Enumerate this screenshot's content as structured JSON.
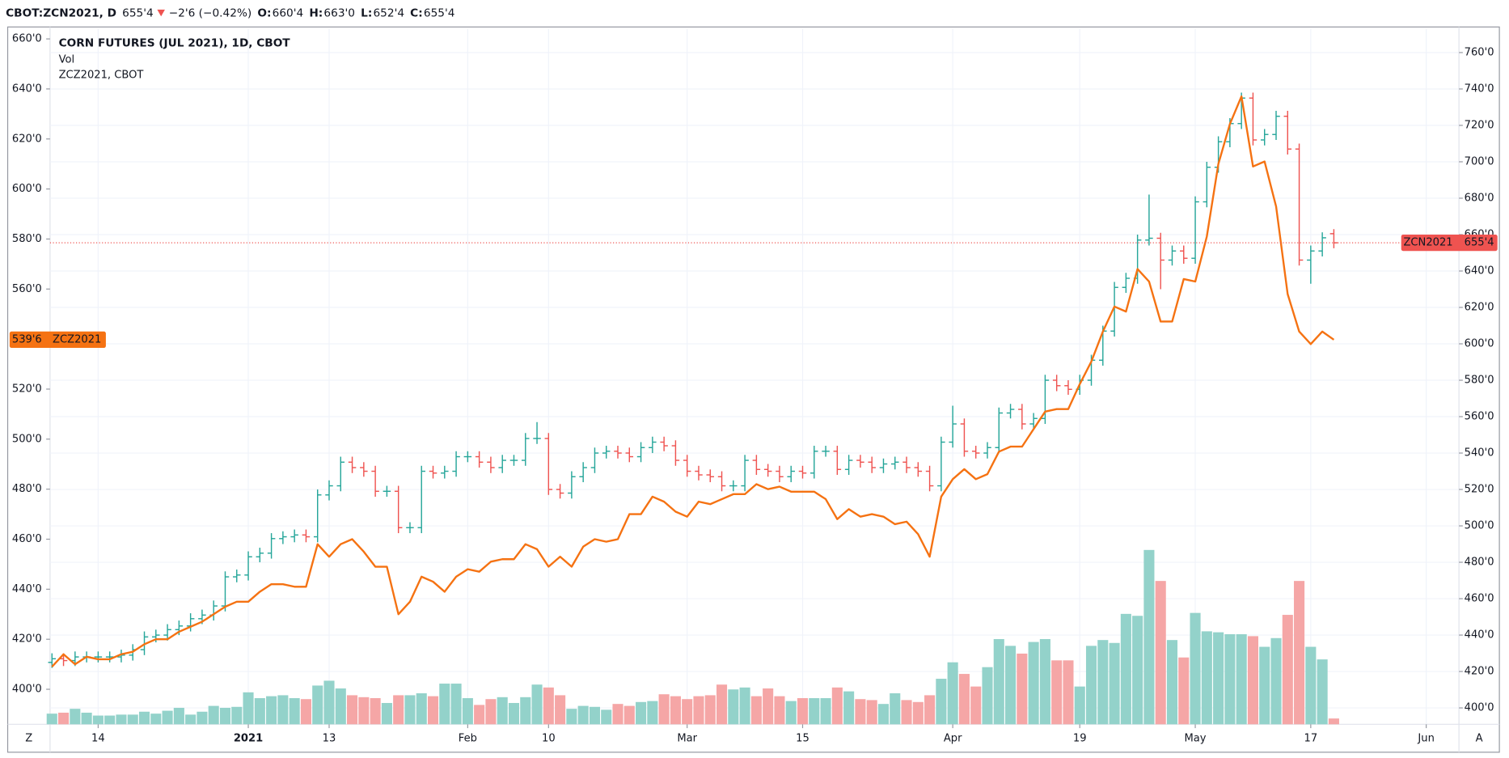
{
  "header": {
    "symbol": "CBOT:ZCN2021, D",
    "last": "655'4",
    "change": "−2'6 (−0.42%)",
    "fields": [
      {
        "key": "O:",
        "value": "660'4"
      },
      {
        "key": "H:",
        "value": "663'0"
      },
      {
        "key": "L:",
        "value": "652'4"
      },
      {
        "key": "C:",
        "value": "655'4"
      }
    ]
  },
  "ui": {
    "timezone_button": "Z",
    "auto_button": "A"
  },
  "chart_data": {
    "type": "ohlc",
    "categories": [
      null,
      null,
      null,
      null,
      "14",
      null,
      null,
      null,
      null,
      null,
      null,
      null,
      null,
      null,
      null,
      null,
      null,
      "2021",
      null,
      null,
      null,
      null,
      null,
      null,
      "13",
      null,
      null,
      null,
      null,
      null,
      null,
      null,
      null,
      null,
      null,
      null,
      "Feb",
      null,
      null,
      null,
      null,
      null,
      null,
      "10",
      null,
      null,
      null,
      null,
      null,
      null,
      null,
      null,
      null,
      null,
      null,
      "Mar",
      null,
      null,
      null,
      null,
      null,
      null,
      null,
      null,
      null,
      "15",
      null,
      null,
      null,
      null,
      null,
      null,
      null,
      null,
      null,
      null,
      null,
      null,
      "Apr",
      null,
      null,
      null,
      null,
      null,
      null,
      null,
      null,
      null,
      null,
      "19",
      null,
      null,
      null,
      null,
      null,
      null,
      null,
      null,
      null,
      "May",
      null,
      null,
      null,
      null,
      null,
      null,
      null,
      null,
      null,
      "17",
      null,
      null,
      null,
      null,
      null,
      null,
      null,
      null,
      null,
      "Jun"
    ],
    "ylim": [
      386,
      664
    ],
    "yticks": [
      {
        "value": 400,
        "label": "400'0"
      },
      {
        "value": 420,
        "label": "420'0"
      },
      {
        "value": 440,
        "label": "440'0"
      },
      {
        "value": 460,
        "label": "460'0"
      },
      {
        "value": 480,
        "label": "480'0"
      },
      {
        "value": 500,
        "label": "500'0"
      },
      {
        "value": 520,
        "label": "520'0"
      },
      {
        "value": 540,
        "label": "540'0"
      },
      {
        "value": 560,
        "label": "560'0"
      },
      {
        "value": 580,
        "label": "580'0"
      },
      {
        "value": 600,
        "label": "600'0"
      },
      {
        "value": 620,
        "label": "620'0"
      },
      {
        "value": 640,
        "label": "640'0"
      },
      {
        "value": 660,
        "label": "660'0"
      }
    ],
    "y2lim": [
      391,
      773
    ],
    "y2ticks": [
      {
        "value": 400,
        "label": "400'0"
      },
      {
        "value": 420,
        "label": "420'0"
      },
      {
        "value": 440,
        "label": "440'0"
      },
      {
        "value": 460,
        "label": "460'0"
      },
      {
        "value": 480,
        "label": "480'0"
      },
      {
        "value": 500,
        "label": "500'0"
      },
      {
        "value": 520,
        "label": "520'0"
      },
      {
        "value": 540,
        "label": "540'0"
      },
      {
        "value": 560,
        "label": "560'0"
      },
      {
        "value": 580,
        "label": "580'0"
      },
      {
        "value": 600,
        "label": "600'0"
      },
      {
        "value": 620,
        "label": "620'0"
      },
      {
        "value": 640,
        "label": "640'0"
      },
      {
        "value": 660,
        "label": "660'0"
      },
      {
        "value": 680,
        "label": "680'0"
      },
      {
        "value": 700,
        "label": "700'0"
      },
      {
        "value": 720,
        "label": "720'0"
      },
      {
        "value": 740,
        "label": "740'0"
      },
      {
        "value": 760,
        "label": "760'0"
      }
    ],
    "grid": true,
    "series": [
      {
        "name": "CORN FUTURES (JUL 2021), 1D, CBOT",
        "type": "ohlc",
        "axis": "y2",
        "short_name": "ZCN2021",
        "last_value_label": "655'4",
        "up_color": "#26a69a",
        "down_color": "#ef5350",
        "open": [
          425,
          427,
          426,
          428,
          428,
          428,
          428,
          429,
          432,
          439,
          440,
          443,
          445,
          449,
          451,
          456,
          472,
          473,
          483,
          485,
          493,
          494,
          495,
          494,
          517,
          522,
          535,
          532,
          530,
          519,
          519,
          499,
          499,
          530,
          529,
          530,
          538,
          538,
          535,
          532,
          536,
          536,
          548,
          548,
          520,
          518,
          527,
          532,
          540,
          541,
          540,
          538,
          543,
          546,
          544,
          536,
          530,
          528,
          527,
          522,
          522,
          536,
          531,
          530,
          527,
          530,
          529,
          541,
          541,
          531,
          536,
          535,
          532,
          534,
          535,
          532,
          530,
          522,
          546,
          556,
          541,
          540,
          543,
          562,
          564,
          556,
          559,
          580,
          577,
          575,
          580,
          591,
          607,
          631,
          636,
          657,
          658,
          646,
          651,
          647,
          678,
          697,
          711,
          721,
          735,
          712,
          715,
          725,
          707,
          646,
          651,
          660.5,
          null,
          null,
          null,
          null,
          null,
          null,
          null,
          null
        ],
        "high": [
          430,
          430,
          431,
          431,
          431,
          431,
          432,
          435,
          442,
          443,
          446,
          448,
          452,
          454,
          459,
          475,
          476,
          486,
          488,
          496,
          497,
          498,
          498,
          520,
          525,
          538,
          538,
          535,
          533,
          522,
          522,
          502,
          533,
          533,
          533,
          541,
          541,
          541,
          538,
          539,
          539,
          551,
          557,
          551,
          523,
          530,
          535,
          543,
          544,
          544,
          543,
          546,
          549,
          549,
          547,
          539,
          533,
          531,
          530,
          525,
          539,
          539,
          534,
          533,
          533,
          533,
          544,
          544,
          544,
          539,
          539,
          538,
          537,
          538,
          538,
          535,
          533,
          549,
          566,
          559,
          544,
          546,
          565,
          567,
          567,
          562,
          583,
          583,
          580,
          583,
          594,
          610,
          634,
          639,
          660,
          682,
          661,
          654,
          654,
          681,
          700,
          714,
          724,
          738,
          738,
          718,
          728,
          728,
          710,
          654,
          661.25,
          663,
          null,
          null,
          null,
          null,
          null,
          null,
          null,
          null
        ],
        "low": [
          422,
          423,
          423,
          425,
          425,
          425,
          425,
          426,
          429,
          436,
          437,
          440,
          442,
          446,
          448,
          453,
          469,
          470,
          480,
          482,
          490,
          491,
          491,
          491,
          514,
          519,
          529,
          527,
          516,
          516,
          496,
          496,
          496,
          526,
          526,
          527,
          535,
          532,
          529,
          529,
          533,
          533,
          545,
          517,
          515,
          515,
          524,
          529,
          537,
          537,
          535,
          535,
          540,
          541,
          533,
          527,
          525,
          524,
          519,
          519,
          519,
          528,
          527,
          524,
          524,
          526,
          526,
          538,
          528,
          528,
          532,
          529,
          529,
          531,
          529,
          527,
          519,
          519,
          543,
          538,
          537,
          537,
          540,
          559,
          553,
          553,
          556,
          574,
          572,
          572,
          577,
          588,
          604,
          628,
          633,
          654,
          630,
          643,
          644,
          644,
          675,
          694,
          708,
          718,
          709,
          709,
          712,
          704,
          643,
          633,
          648,
          652.5,
          null,
          null,
          null,
          null,
          null,
          null,
          null,
          null
        ],
        "close": [
          427,
          426,
          428,
          428,
          428,
          428,
          429,
          432,
          439,
          440,
          443,
          445,
          449,
          451,
          456,
          472,
          473,
          483,
          485,
          493,
          494,
          495,
          494,
          517,
          522,
          535,
          532,
          530,
          519,
          519,
          499,
          499,
          530,
          529,
          530,
          538,
          538,
          535,
          532,
          536,
          536,
          548,
          548,
          520,
          518,
          527,
          532,
          540,
          541,
          540,
          538,
          543,
          546,
          544,
          536,
          530,
          528,
          527,
          522,
          522,
          536,
          531,
          530,
          527,
          530,
          529,
          541,
          541,
          531,
          536,
          535,
          532,
          534,
          535,
          532,
          530,
          522,
          546,
          556,
          541,
          540,
          543,
          562,
          564,
          556,
          559,
          580,
          577,
          575,
          580,
          591,
          607,
          631,
          636,
          657,
          658,
          646,
          651,
          647,
          678,
          697,
          711,
          721,
          735,
          712,
          715,
          725,
          707,
          646,
          651,
          658.25,
          655.5,
          null,
          null,
          null,
          null,
          null,
          null,
          null,
          null
        ]
      },
      {
        "name": "Vol",
        "type": "volume",
        "up_color": "#93d2ca",
        "down_color": "#f5a6a6",
        "values": [
          11,
          12,
          16,
          12,
          9,
          9,
          10,
          10,
          13,
          11,
          14,
          17,
          10,
          13,
          19,
          17,
          18,
          33,
          27,
          29,
          30,
          27,
          26,
          40,
          45,
          37,
          30,
          28,
          27,
          22,
          30,
          30,
          32,
          29,
          42,
          42,
          27,
          20,
          26,
          28,
          22,
          28,
          41,
          38,
          30,
          16,
          19,
          18,
          15,
          21,
          19,
          23,
          24,
          31,
          29,
          26,
          29,
          30,
          41,
          36,
          38,
          29,
          37,
          29,
          24,
          27,
          27,
          27,
          38,
          34,
          26,
          25,
          21,
          32,
          25,
          23,
          30,
          47,
          64,
          52,
          39,
          59,
          88,
          81,
          73,
          85,
          88,
          66,
          66,
          39,
          81,
          87,
          84,
          114,
          112,
          180,
          148,
          87,
          69,
          115,
          96,
          95,
          93,
          93,
          91,
          80,
          89,
          113,
          148,
          80,
          67,
          6,
          null,
          null,
          null,
          null,
          null,
          null,
          null,
          null
        ]
      },
      {
        "name": "ZCZ2021, CBOT",
        "type": "line",
        "axis": "y",
        "short_name": "ZCZ2021",
        "last_value_label": "539'6",
        "color": "#f57212",
        "values": [
          409,
          414,
          410,
          413,
          412,
          412,
          414,
          415,
          418,
          420,
          420,
          423,
          425,
          427,
          430,
          433,
          435,
          435,
          439,
          442,
          442,
          441,
          441,
          458,
          453,
          458,
          460,
          455,
          449,
          449,
          430,
          435,
          445,
          443,
          439,
          445,
          448,
          447,
          451,
          452,
          452,
          458,
          456,
          449,
          453,
          449,
          457,
          460,
          459,
          460,
          470,
          470,
          477,
          475,
          471,
          469,
          475,
          474,
          476,
          478,
          478,
          482,
          480,
          481,
          479,
          479,
          479,
          476,
          468,
          472,
          469,
          470,
          469,
          466,
          467,
          462,
          453,
          477,
          484,
          488,
          484,
          486,
          495,
          497,
          497,
          504,
          511,
          512,
          512,
          522,
          531,
          543,
          553,
          551,
          568,
          563,
          547,
          547,
          564,
          563,
          581,
          610,
          626,
          637,
          609,
          611,
          593,
          558,
          543,
          538,
          543,
          539.75,
          null,
          null,
          null,
          null,
          null,
          null,
          null,
          null
        ]
      }
    ]
  }
}
